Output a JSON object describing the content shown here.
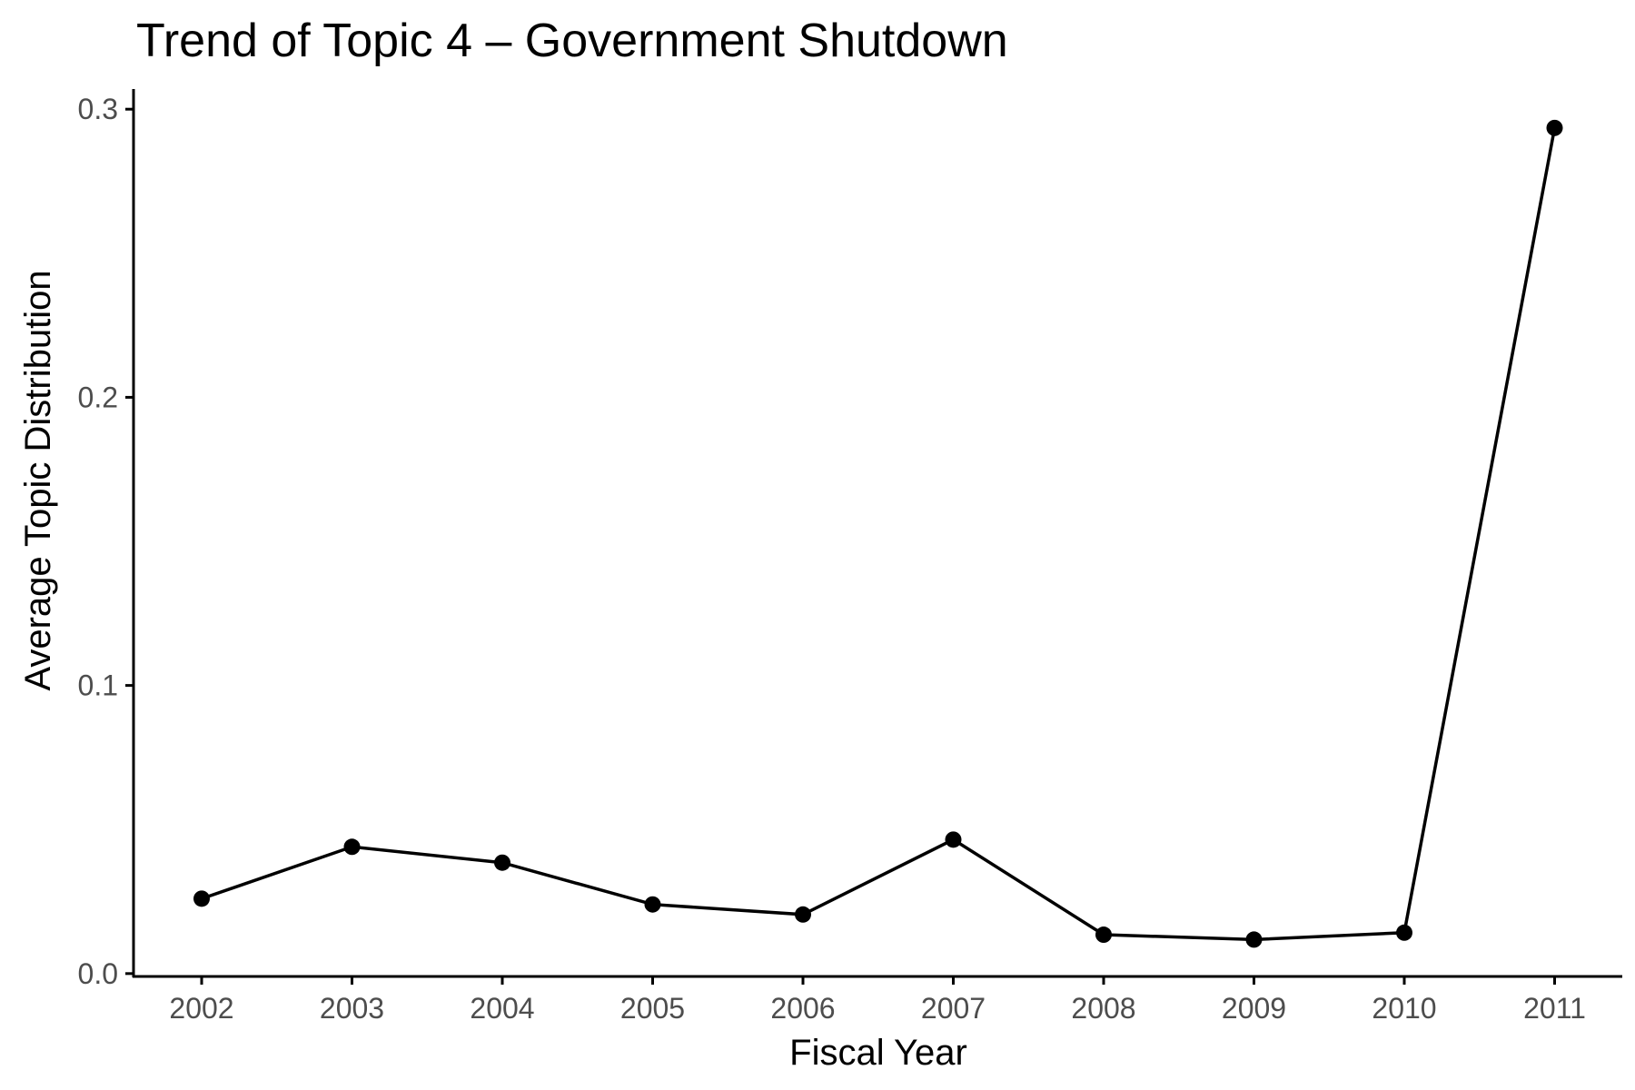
{
  "chart_data": {
    "type": "line",
    "title": "Trend of Topic 4 – Government Shutdown",
    "xlabel": "Fiscal Year",
    "ylabel": "Average Topic Distribution",
    "x": [
      "2002",
      "2003",
      "2004",
      "2005",
      "2006",
      "2007",
      "2008",
      "2009",
      "2010",
      "2011"
    ],
    "y": [
      0.026,
      0.044,
      0.0385,
      0.024,
      0.0205,
      0.0465,
      0.0135,
      0.0118,
      0.0142,
      0.2935
    ],
    "ylim": [
      -0.001,
      0.307
    ],
    "yticks": [
      0.0,
      0.1,
      0.2,
      0.3
    ],
    "ytick_labels": [
      "0.0",
      "0.1",
      "0.2",
      "0.3"
    ],
    "grid": false,
    "colors": {
      "line": "#000000",
      "points": "#000000",
      "tick_text": "#4d4d4d"
    }
  }
}
